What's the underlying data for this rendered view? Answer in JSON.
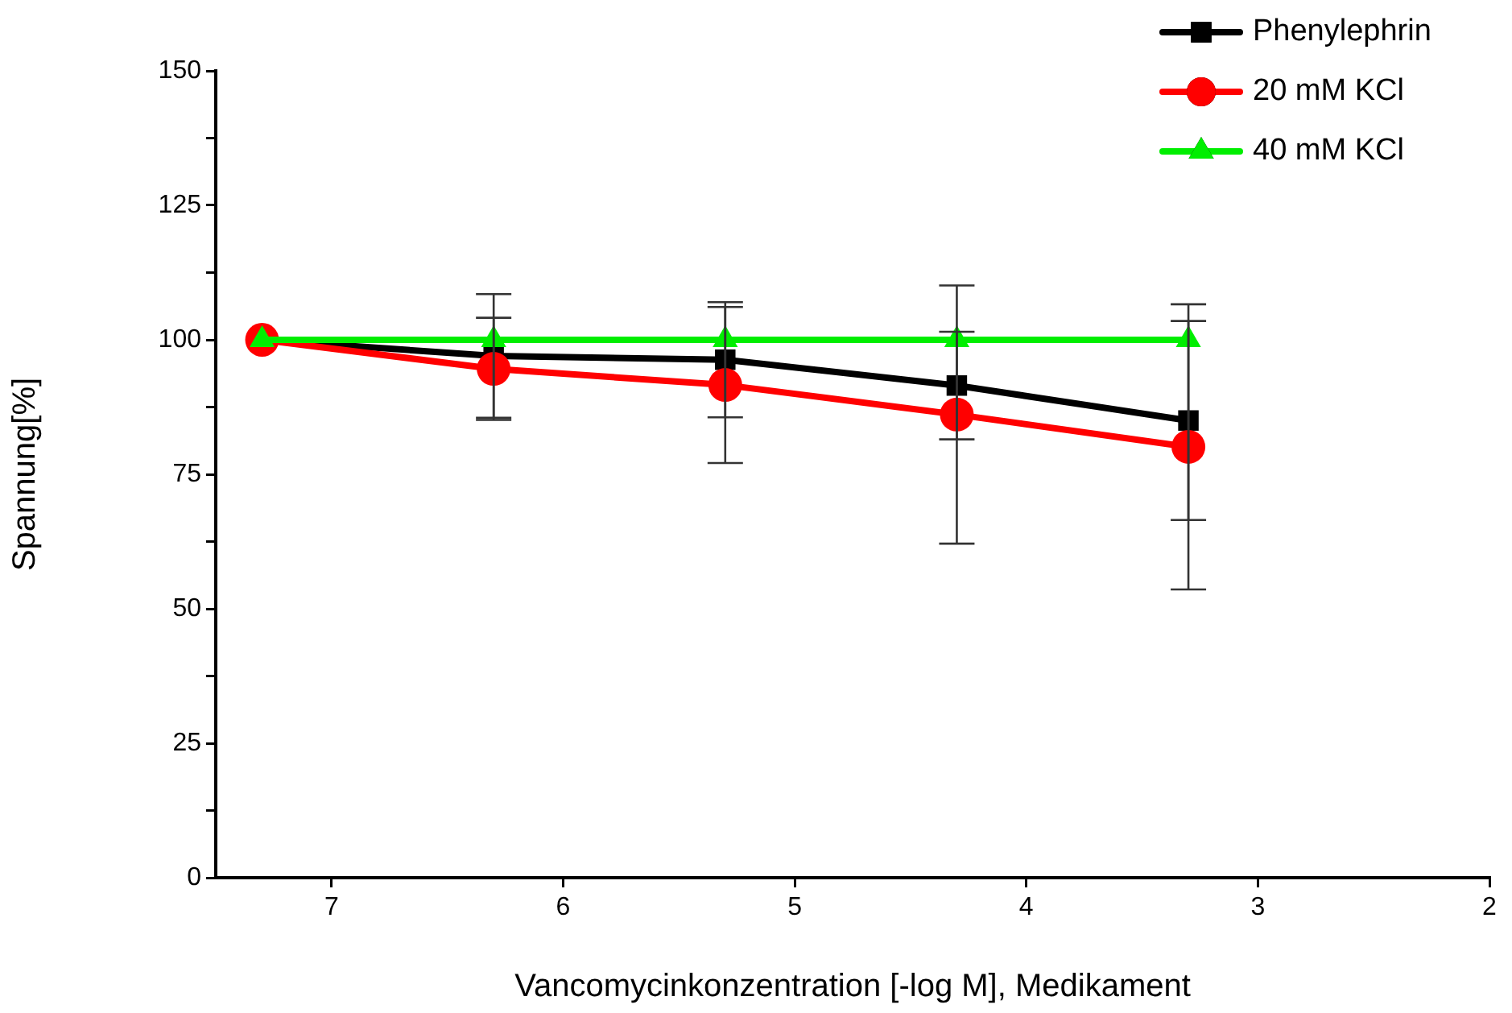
{
  "chart_data": {
    "type": "line",
    "xlabel": "Vancomycinkonzentration [-log M], Medikament",
    "ylabel": "Spannung[%]",
    "x": [
      7.3,
      6.3,
      5.3,
      4.3,
      3.3
    ],
    "series": [
      {
        "name": "Phenylephrin",
        "color": "#000000",
        "marker": "square",
        "values": [
          100,
          97,
          96.3,
          91.5,
          85
        ],
        "errors": [
          null,
          11.5,
          10.7,
          10,
          18.5
        ]
      },
      {
        "name": "20 mM KCl",
        "color": "#ff0000",
        "marker": "circle",
        "values": [
          100,
          94.6,
          91.6,
          86.1,
          80.1
        ],
        "errors": [
          null,
          9.5,
          14.5,
          24,
          26.5
        ]
      },
      {
        "name": "40 mM KCl",
        "color": "#00ee00",
        "marker": "triangle",
        "values": [
          100,
          100,
          100,
          100,
          100
        ]
      }
    ],
    "xlim": [
      7.5,
      2
    ],
    "xticks": [
      7,
      6,
      5,
      4,
      3,
      2
    ],
    "ylim": [
      0,
      150
    ],
    "yticks": [
      0,
      {
        "value": 12.5,
        "label": null
      },
      25,
      {
        "value": 37.5,
        "label": null
      },
      50,
      {
        "value": 62.5,
        "label": null
      },
      75,
      {
        "value": 87.5,
        "label": null
      },
      100,
      {
        "value": 112.5,
        "label": null
      },
      125,
      {
        "value": 137.5,
        "label": null
      },
      150
    ],
    "grid": false,
    "legend": "top right",
    "line_style": "solid"
  }
}
